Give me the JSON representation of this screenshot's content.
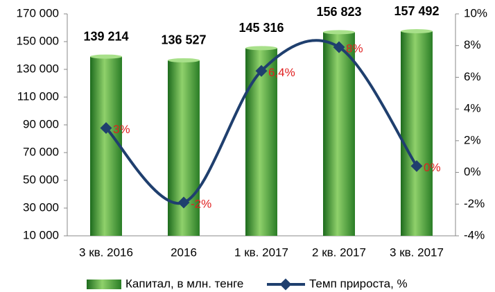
{
  "chart_data": {
    "type": "bar",
    "categories": [
      "3 кв. 2016",
      "2016",
      "1 кв. 2017",
      "2 кв. 2017",
      "3 кв. 2017"
    ],
    "series": [
      {
        "name": "Капитал, в млн. тенге",
        "color": "#3a9a3a",
        "values": [
          139214,
          136527,
          145316,
          156823,
          157492
        ],
        "value_labels": [
          "139 214",
          "136 527",
          "145 316",
          "156 823",
          "157 492"
        ]
      },
      {
        "name": "Темп прироста, %",
        "color": "#1f3f6e",
        "type": "line",
        "axis": "y2",
        "values": [
          2.8,
          -1.9,
          6.4,
          7.9,
          0.4
        ],
        "value_labels": [
          "3%",
          "-2%",
          "6,4%",
          "8%",
          "0%"
        ]
      }
    ],
    "ylim": [
      10000,
      170000
    ],
    "yticks": [
      {
        "value": 10000,
        "label": "10 000"
      },
      {
        "value": 30000,
        "label": "30 000"
      },
      {
        "value": 50000,
        "label": "50 000"
      },
      {
        "value": 70000,
        "label": "70 000"
      },
      {
        "value": 90000,
        "label": "90 000"
      },
      {
        "value": 110000,
        "label": "110 000"
      },
      {
        "value": 130000,
        "label": "130 000"
      },
      {
        "value": 150000,
        "label": "150 000"
      },
      {
        "value": 170000,
        "label": "170 000"
      }
    ],
    "y2lim": [
      -4,
      10
    ],
    "y2ticks": [
      {
        "value": -4,
        "label": "-4%"
      },
      {
        "value": -2,
        "label": "-2%"
      },
      {
        "value": 0,
        "label": "0%"
      },
      {
        "value": 2,
        "label": "2%"
      },
      {
        "value": 4,
        "label": "4%"
      },
      {
        "value": 6,
        "label": "6%"
      },
      {
        "value": 8,
        "label": "8%"
      },
      {
        "value": 10,
        "label": "10%"
      }
    ],
    "grid": false,
    "legend": "bottom"
  }
}
